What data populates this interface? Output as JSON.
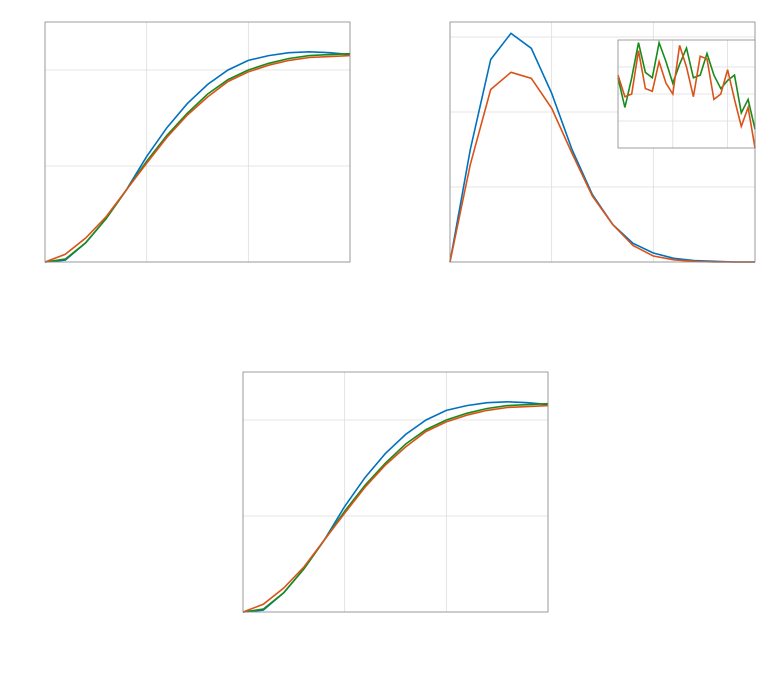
{
  "chart_data": [
    {
      "type": "line",
      "grid": true,
      "xlim": [
        0,
        3
      ],
      "xticks": [
        0,
        1,
        2,
        3
      ],
      "ylim": [
        0,
        2.5
      ],
      "yticks": [
        0,
        1,
        2
      ],
      "x": [
        0,
        0.2,
        0.4,
        0.6,
        0.8,
        1.0,
        1.2,
        1.4,
        1.6,
        1.8,
        2.0,
        2.2,
        2.4,
        2.6,
        2.8,
        3.0
      ],
      "series": [
        {
          "color": "#0072bd",
          "values": [
            0,
            0.02,
            0.2,
            0.45,
            0.75,
            1.1,
            1.4,
            1.65,
            1.85,
            2.0,
            2.1,
            2.15,
            2.18,
            2.19,
            2.18,
            2.16
          ]
        },
        {
          "color": "#1a8a1a",
          "values": [
            0,
            0.03,
            0.2,
            0.45,
            0.75,
            1.05,
            1.32,
            1.55,
            1.75,
            1.9,
            2.0,
            2.07,
            2.12,
            2.15,
            2.16,
            2.17
          ]
        },
        {
          "color": "#d95319",
          "values": [
            0,
            0.08,
            0.25,
            0.47,
            0.75,
            1.03,
            1.3,
            1.53,
            1.72,
            1.88,
            1.98,
            2.05,
            2.1,
            2.13,
            2.14,
            2.15
          ]
        }
      ]
    },
    {
      "type": "line",
      "grid": true,
      "xlim": [
        0,
        3
      ],
      "xticks": [
        0,
        1,
        2,
        3
      ],
      "ylim": [
        0,
        3.2
      ],
      "yticks": [
        0,
        1,
        2,
        3
      ],
      "x": [
        0,
        0.2,
        0.4,
        0.6,
        0.8,
        1.0,
        1.2,
        1.4,
        1.6,
        1.8,
        2.0,
        2.2,
        2.4,
        2.6,
        2.8,
        3.0
      ],
      "series": [
        {
          "color": "#0072bd",
          "values": [
            0,
            1.5,
            2.7,
            3.05,
            2.85,
            2.25,
            1.5,
            0.9,
            0.5,
            0.25,
            0.12,
            0.05,
            0.02,
            0.01,
            0,
            0
          ]
        },
        {
          "color": "#d95319",
          "values": [
            0,
            1.3,
            2.3,
            2.53,
            2.45,
            2.05,
            1.45,
            0.88,
            0.5,
            0.22,
            0.08,
            0.03,
            0.01,
            0,
            0,
            0
          ]
        }
      ]
    },
    {
      "type": "line",
      "grid": true,
      "xlim": [
        0,
        2.5
      ],
      "xticks": [
        1,
        2
      ],
      "ylim": [
        0,
        4
      ],
      "yticks": [
        1,
        2,
        3
      ],
      "x": [
        0,
        0.125,
        0.25,
        0.375,
        0.5,
        0.625,
        0.75,
        0.875,
        1.0,
        1.125,
        1.25,
        1.375,
        1.5,
        1.625,
        1.75,
        1.875,
        2.0,
        2.125,
        2.25,
        2.375,
        2.5
      ],
      "series": [
        {
          "color": "#1a8a1a",
          "values": [
            2.6,
            1.5,
            2.6,
            3.9,
            2.8,
            2.6,
            3.9,
            3.2,
            2.4,
            3.1,
            3.7,
            2.6,
            2.7,
            3.5,
            2.7,
            2.2,
            2.5,
            2.7,
            1.3,
            1.8,
            0.7
          ]
        },
        {
          "color": "#d95319",
          "values": [
            2.7,
            1.9,
            2.0,
            3.6,
            2.2,
            2.1,
            3.2,
            2.4,
            2.0,
            3.8,
            3.0,
            1.9,
            3.4,
            3.3,
            1.8,
            2.0,
            2.9,
            1.8,
            0.8,
            1.5,
            0
          ]
        }
      ]
    },
    {
      "type": "line",
      "grid": true,
      "xlim": [
        0,
        3
      ],
      "xticks": [
        0,
        1,
        2,
        3
      ],
      "ylim": [
        0,
        2.5
      ],
      "yticks": [
        0,
        1,
        2
      ],
      "x": [
        0,
        0.2,
        0.4,
        0.6,
        0.8,
        1.0,
        1.2,
        1.4,
        1.6,
        1.8,
        2.0,
        2.2,
        2.4,
        2.6,
        2.8,
        3.0
      ],
      "series": [
        {
          "color": "#0072bd",
          "values": [
            0,
            0.02,
            0.2,
            0.45,
            0.75,
            1.1,
            1.4,
            1.65,
            1.85,
            2.0,
            2.1,
            2.15,
            2.18,
            2.19,
            2.18,
            2.16
          ]
        },
        {
          "color": "#1a8a1a",
          "values": [
            0,
            0.03,
            0.2,
            0.45,
            0.75,
            1.05,
            1.32,
            1.55,
            1.75,
            1.9,
            2.0,
            2.07,
            2.12,
            2.15,
            2.16,
            2.17
          ]
        },
        {
          "color": "#d95319",
          "values": [
            0,
            0.08,
            0.25,
            0.47,
            0.75,
            1.03,
            1.3,
            1.53,
            1.72,
            1.88,
            1.98,
            2.05,
            2.1,
            2.13,
            2.14,
            2.15
          ]
        }
      ]
    }
  ]
}
